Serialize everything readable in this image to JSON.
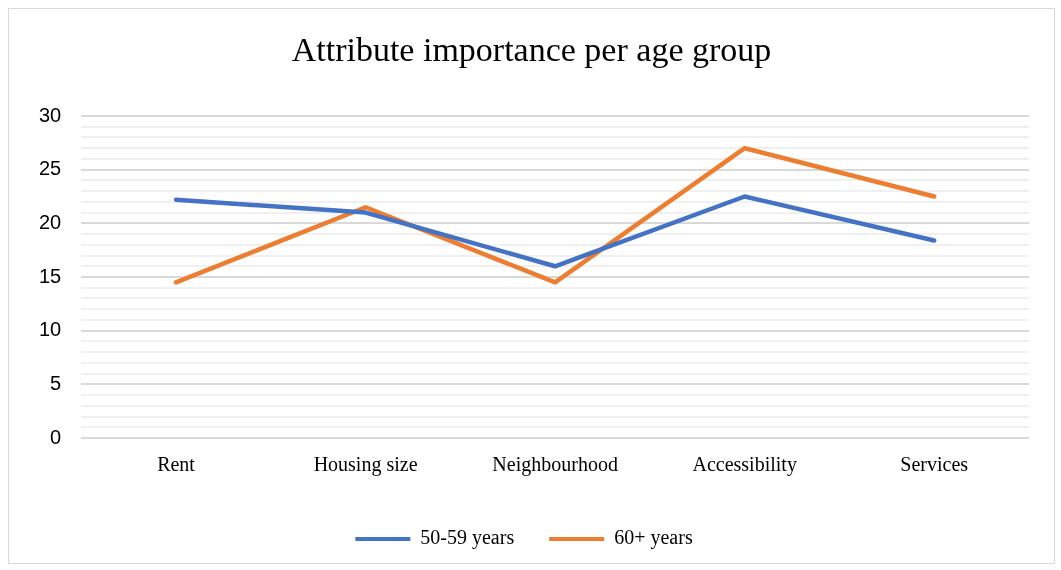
{
  "chart_data": {
    "type": "line",
    "title": "Attribute importance per age group",
    "categories": [
      "Rent",
      "Housing size",
      "Neighbourhood",
      "Accessibility",
      "Services"
    ],
    "series": [
      {
        "name": "50-59 years",
        "color": "#4472c4",
        "values": [
          22.2,
          21.0,
          16.0,
          22.5,
          18.4
        ]
      },
      {
        "name": "60+ years",
        "color": "#ed7d31",
        "values": [
          14.5,
          21.5,
          14.5,
          27.0,
          22.5
        ]
      }
    ],
    "ylim": [
      0,
      30
    ],
    "yticks": [
      0,
      {
        "value": 1,
        "label": null
      },
      {
        "value": 2,
        "label": null
      },
      {
        "value": 3,
        "label": null
      },
      {
        "value": 4,
        "label": null
      },
      5,
      {
        "value": 6,
        "label": null
      },
      {
        "value": 7,
        "label": null
      },
      {
        "value": 8,
        "label": null
      },
      {
        "value": 9,
        "label": null
      },
      10,
      {
        "value": 11,
        "label": null
      },
      {
        "value": 12,
        "label": null
      },
      {
        "value": 13,
        "label": null
      },
      {
        "value": 14,
        "label": null
      },
      15,
      {
        "value": 16,
        "label": null
      },
      {
        "value": 17,
        "label": null
      },
      {
        "value": 18,
        "label": null
      },
      {
        "value": 19,
        "label": null
      },
      20,
      {
        "value": 21,
        "label": null
      },
      {
        "value": 22,
        "label": null
      },
      {
        "value": 23,
        "label": null
      },
      {
        "value": 24,
        "label": null
      },
      25,
      {
        "value": 26,
        "label": null
      },
      {
        "value": 27,
        "label": null
      },
      {
        "value": 28,
        "label": null
      },
      {
        "value": 29,
        "label": null
      },
      30
    ],
    "grid": "y",
    "legend": "bottom",
    "marker": "none",
    "line_style": "solid"
  }
}
